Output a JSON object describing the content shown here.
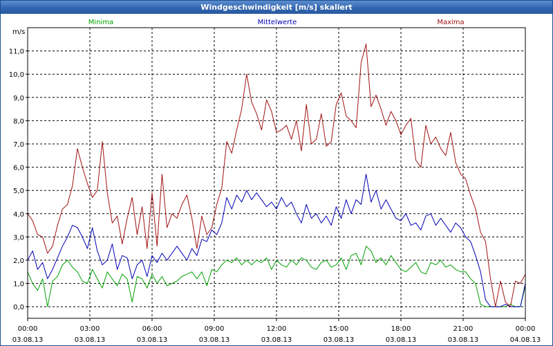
{
  "chart_data": {
    "type": "line",
    "title": "Windgeschwindigkeit [m/s] skaliert",
    "ylabel": "m/s",
    "ylim": [
      -0.5,
      12.0
    ],
    "y_ticks": [
      "0,0",
      "1,0",
      "2,0",
      "3,0",
      "4,0",
      "5,0",
      "6,0",
      "7,0",
      "8,0",
      "9,0",
      "10,0",
      "11,0"
    ],
    "xlim": [
      0,
      24
    ],
    "x_ticks": [
      {
        "time": "00:00",
        "date": "03.08.13"
      },
      {
        "time": "03:00",
        "date": "03.08.13"
      },
      {
        "time": "06:00",
        "date": "03.08.13"
      },
      {
        "time": "09:00",
        "date": "03.08.13"
      },
      {
        "time": "12:00",
        "date": "03.08.13"
      },
      {
        "time": "15:00",
        "date": "03.08.13"
      },
      {
        "time": "18:00",
        "date": "03.08.13"
      },
      {
        "time": "21:00",
        "date": "03.08.13"
      },
      {
        "time": "00:00",
        "date": "04.08.13"
      }
    ],
    "grid": true,
    "series": [
      {
        "name": "Minima",
        "color": "#00a000",
        "legend": "Minima",
        "values": [
          1.5,
          1.0,
          0.7,
          1.2,
          0.0,
          1.1,
          1.3,
          1.8,
          2.0,
          1.7,
          1.5,
          1.1,
          1.0,
          1.6,
          1.2,
          0.8,
          1.5,
          1.2,
          0.9,
          1.4,
          1.2,
          0.2,
          1.3,
          1.2,
          0.8,
          1.4,
          1.0,
          1.3,
          0.9,
          1.0,
          1.1,
          1.3,
          1.4,
          1.5,
          1.2,
          1.5,
          0.9,
          1.6,
          1.5,
          1.8,
          2.0,
          1.9,
          2.1,
          1.8,
          2.0,
          1.8,
          2.0,
          1.9,
          2.1,
          1.6,
          2.0,
          1.8,
          1.7,
          2.0,
          1.8,
          2.1,
          2.0,
          1.7,
          1.6,
          1.9,
          2.0,
          1.7,
          1.8,
          2.1,
          1.6,
          2.2,
          2.3,
          1.8,
          2.6,
          2.4,
          1.9,
          2.1,
          1.8,
          2.2,
          1.9,
          1.6,
          1.5,
          1.7,
          1.9,
          1.5,
          1.4,
          1.9,
          1.8,
          2.0,
          1.7,
          1.8,
          1.6,
          1.5,
          1.5,
          1.2,
          1.0,
          0.1,
          0.0,
          0.0,
          0.0,
          0.0,
          0.0,
          0.1,
          0.0,
          0.0,
          0.9
        ]
      },
      {
        "name": "Mittelwerte",
        "color": "#0000b4",
        "legend": "Mittelwerte",
        "values": [
          2.0,
          2.4,
          1.6,
          1.9,
          1.2,
          1.6,
          2.1,
          2.6,
          3.0,
          3.5,
          3.4,
          3.0,
          2.5,
          3.4,
          2.4,
          1.8,
          2.0,
          2.7,
          1.6,
          2.2,
          2.1,
          1.2,
          1.8,
          2.0,
          1.3,
          2.2,
          1.9,
          2.3,
          2.0,
          2.3,
          2.6,
          2.3,
          2.0,
          2.5,
          2.2,
          2.9,
          2.8,
          3.3,
          3.1,
          3.6,
          4.7,
          4.2,
          4.8,
          4.5,
          5.0,
          4.6,
          4.9,
          4.6,
          4.3,
          4.5,
          4.2,
          4.7,
          4.3,
          4.5,
          4.0,
          3.6,
          4.4,
          3.8,
          4.0,
          3.6,
          3.9,
          3.5,
          4.3,
          3.8,
          4.6,
          4.0,
          4.6,
          4.4,
          5.7,
          4.5,
          5.0,
          4.2,
          4.6,
          4.2,
          3.8,
          3.7,
          4.0,
          3.5,
          3.6,
          3.3,
          3.9,
          4.0,
          3.5,
          3.8,
          3.5,
          3.2,
          3.6,
          3.4,
          3.0,
          2.8,
          2.2,
          1.5,
          0.3,
          0.0,
          0.0,
          0.0,
          0.1,
          0.0,
          0.0,
          0.0,
          1.0
        ]
      },
      {
        "name": "Maxima",
        "color": "#a01010",
        "legend": "Maxima",
        "values": [
          4.0,
          3.7,
          3.1,
          3.0,
          2.3,
          2.6,
          3.5,
          4.2,
          4.4,
          5.2,
          6.8,
          6.0,
          5.3,
          4.7,
          5.0,
          7.1,
          4.9,
          3.6,
          3.9,
          2.7,
          3.8,
          4.7,
          3.1,
          4.3,
          2.5,
          4.9,
          2.6,
          5.7,
          3.4,
          4.0,
          3.8,
          4.4,
          4.8,
          3.8,
          2.5,
          3.9,
          3.1,
          3.4,
          4.4,
          5.1,
          7.1,
          6.6,
          7.6,
          8.5,
          10.0,
          8.8,
          8.3,
          7.6,
          8.9,
          8.4,
          7.5,
          7.6,
          7.8,
          7.2,
          8.0,
          6.7,
          8.7,
          7.0,
          7.2,
          8.3,
          6.9,
          7.1,
          8.7,
          9.2,
          8.2,
          8.0,
          7.7,
          10.5,
          11.3,
          8.6,
          9.1,
          8.5,
          7.8,
          8.4,
          8.0,
          7.4,
          7.8,
          8.1,
          6.3,
          6.0,
          7.8,
          7.0,
          7.3,
          6.8,
          6.5,
          7.5,
          6.2,
          5.7,
          5.5,
          4.8,
          4.2,
          3.2,
          2.8,
          1.2,
          0.0,
          1.1,
          0.2,
          0.0,
          1.1,
          1.0,
          1.4
        ]
      }
    ]
  }
}
